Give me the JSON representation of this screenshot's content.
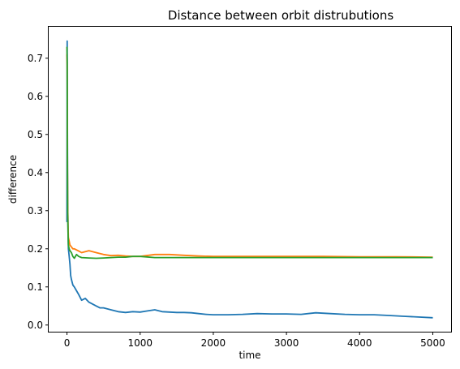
{
  "chart_data": {
    "type": "line",
    "title": "Distance between orbit distrubutions",
    "xlabel": "time",
    "ylabel": "difference",
    "xlim": [
      -250,
      5250
    ],
    "ylim": [
      -0.0175,
      0.7825
    ],
    "xticks": [
      0,
      1000,
      2000,
      3000,
      4000,
      5000
    ],
    "yticks": [
      0.0,
      0.1,
      0.2,
      0.3,
      0.4,
      0.5,
      0.6,
      0.7
    ],
    "xtick_labels": [
      "0",
      "1000",
      "2000",
      "3000",
      "4000",
      "5000"
    ],
    "ytick_labels": [
      "0.0",
      "0.1",
      "0.2",
      "0.3",
      "0.4",
      "0.5",
      "0.6",
      "0.7"
    ],
    "grid": false,
    "legend": "none",
    "series": [
      {
        "color": "#1f77b4",
        "x": [
          0,
          3,
          6,
          10,
          15,
          20,
          30,
          40,
          50,
          60,
          80,
          100,
          130,
          160,
          200,
          250,
          300,
          350,
          400,
          450,
          500,
          600,
          700,
          800,
          900,
          1000,
          1100,
          1200,
          1300,
          1400,
          1500,
          1600,
          1700,
          1800,
          1900,
          2000,
          2200,
          2400,
          2600,
          2800,
          3000,
          3200,
          3400,
          3600,
          3800,
          4000,
          4200,
          4400,
          4600,
          4800,
          5000
        ],
        "y": [
          0.27,
          0.745,
          0.52,
          0.33,
          0.24,
          0.2,
          0.18,
          0.16,
          0.13,
          0.12,
          0.105,
          0.1,
          0.09,
          0.08,
          0.065,
          0.07,
          0.06,
          0.055,
          0.05,
          0.045,
          0.045,
          0.04,
          0.035,
          0.033,
          0.035,
          0.034,
          0.037,
          0.04,
          0.035,
          0.034,
          0.033,
          0.033,
          0.032,
          0.03,
          0.028,
          0.027,
          0.027,
          0.028,
          0.03,
          0.029,
          0.029,
          0.028,
          0.032,
          0.03,
          0.028,
          0.027,
          0.027,
          0.025,
          0.023,
          0.021,
          0.019
        ]
      },
      {
        "color": "#ff7f0e",
        "x": [
          0,
          3,
          6,
          10,
          15,
          20,
          30,
          40,
          60,
          80,
          100,
          150,
          200,
          300,
          400,
          500,
          600,
          700,
          800,
          900,
          1000,
          1200,
          1400,
          1600,
          1800,
          2000,
          2500,
          3000,
          3500,
          4000,
          4500,
          5000
        ],
        "y": [
          0.71,
          0.68,
          0.45,
          0.32,
          0.26,
          0.23,
          0.22,
          0.21,
          0.205,
          0.2,
          0.2,
          0.195,
          0.19,
          0.195,
          0.19,
          0.185,
          0.182,
          0.183,
          0.181,
          0.18,
          0.18,
          0.185,
          0.185,
          0.183,
          0.181,
          0.18,
          0.18,
          0.18,
          0.18,
          0.179,
          0.179,
          0.178
        ]
      },
      {
        "color": "#2ca02c",
        "x": [
          0,
          3,
          6,
          10,
          15,
          20,
          30,
          40,
          60,
          80,
          100,
          130,
          160,
          200,
          300,
          400,
          500,
          600,
          700,
          800,
          900,
          1000,
          1200,
          1400,
          1600,
          1800,
          2000,
          2500,
          3000,
          3500,
          4000,
          4500,
          5000
        ],
        "y": [
          0.73,
          0.69,
          0.41,
          0.3,
          0.24,
          0.21,
          0.2,
          0.195,
          0.19,
          0.18,
          0.175,
          0.185,
          0.18,
          0.177,
          0.176,
          0.175,
          0.176,
          0.177,
          0.178,
          0.178,
          0.18,
          0.18,
          0.177,
          0.177,
          0.177,
          0.177,
          0.177,
          0.177,
          0.177,
          0.177,
          0.177,
          0.177,
          0.177
        ]
      }
    ]
  }
}
